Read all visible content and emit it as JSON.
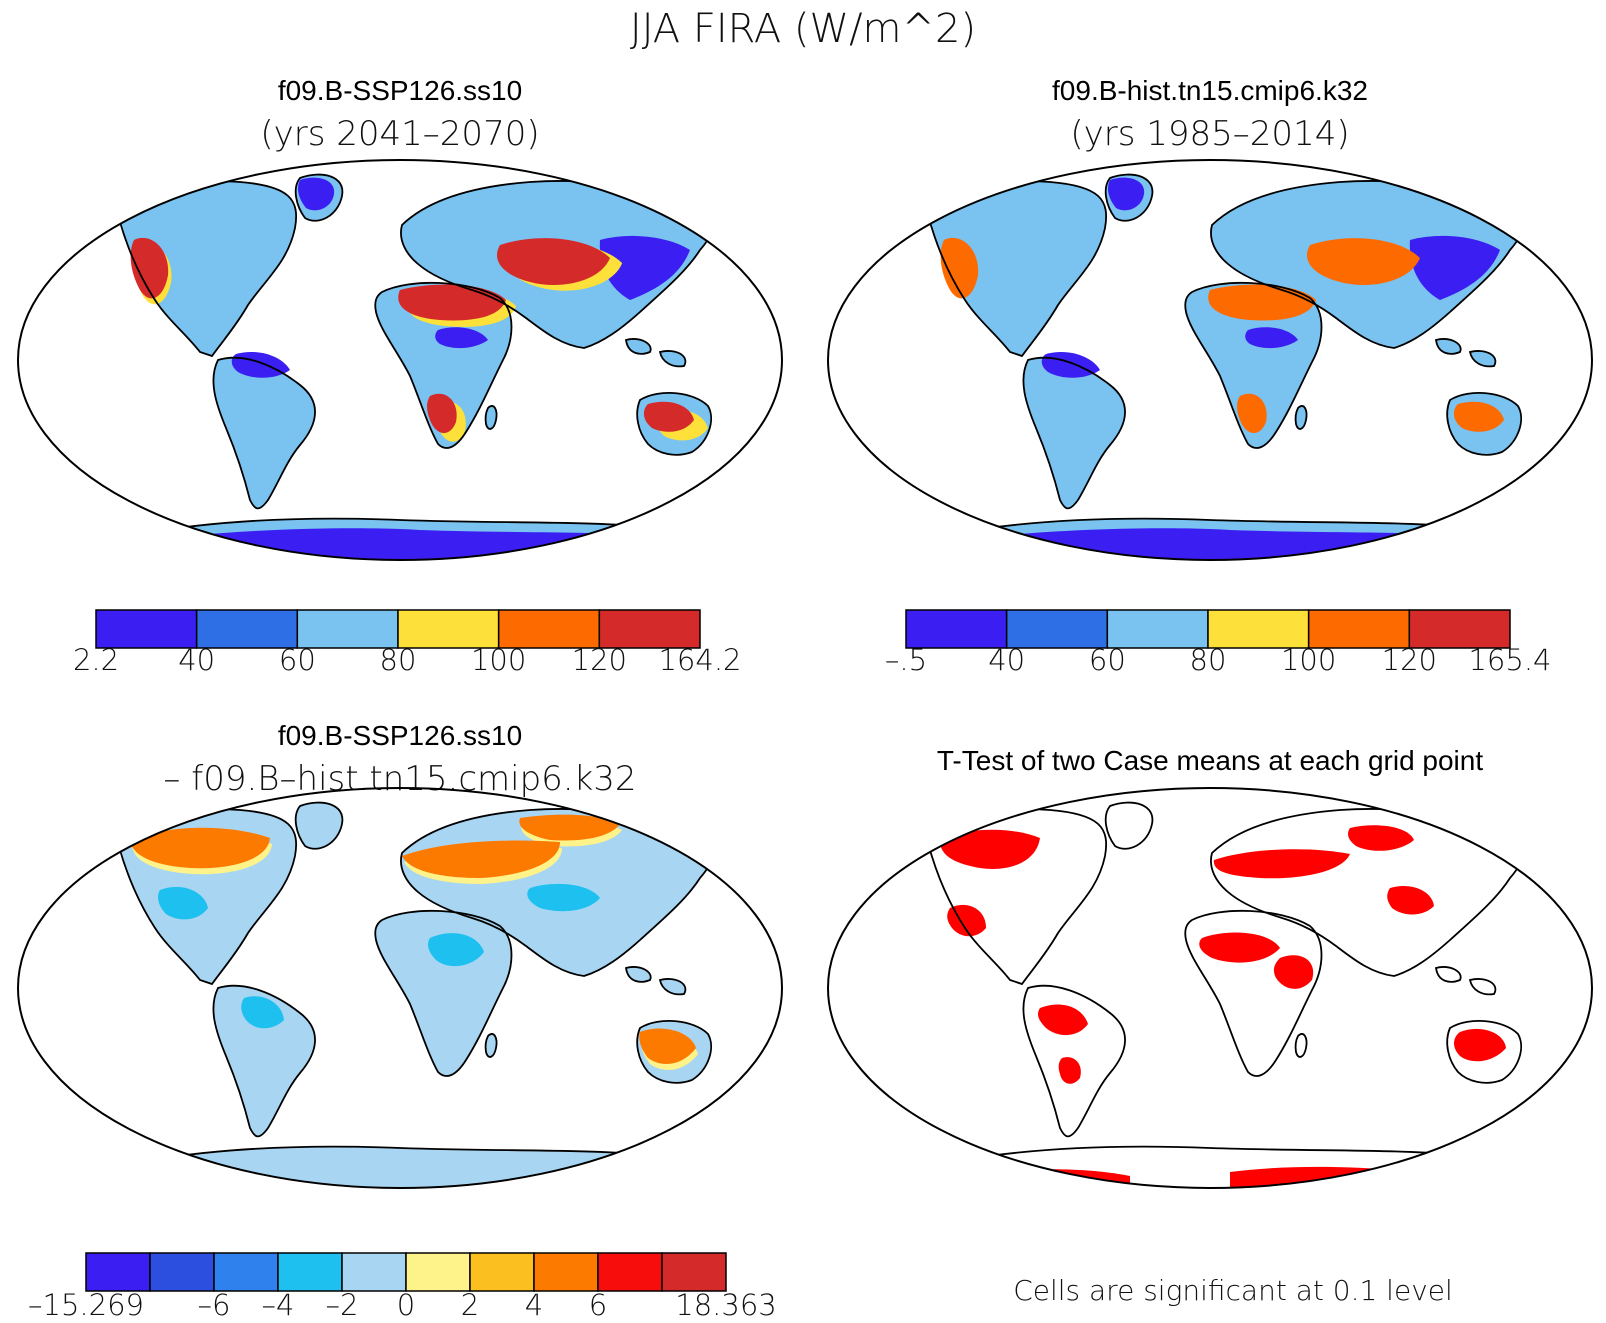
{
  "figure": {
    "title": "JJA FIRA (W/m^2)"
  },
  "panels": [
    {
      "id": "case",
      "title": "f09.B-SSP126.ss10",
      "subtitle": "(yrs 2041–2070)",
      "colorbar": {
        "labels": [
          "2.2",
          "40",
          "60",
          "80",
          "100",
          "120",
          "164.2"
        ],
        "colors": [
          "#3a1ef2",
          "#2f6fe6",
          "#7ac3f0",
          "#fde13a",
          "#fd6a00",
          "#d42a2a"
        ]
      }
    },
    {
      "id": "control",
      "title": "f09.B-hist.tn15.cmip6.k32",
      "subtitle": "(yrs 1985–2014)",
      "colorbar": {
        "labels": [
          "–.5",
          "40",
          "60",
          "80",
          "100",
          "120",
          "165.4"
        ],
        "colors": [
          "#3a1ef2",
          "#2f6fe6",
          "#7ac3f0",
          "#fde13a",
          "#fd6a00",
          "#d42a2a"
        ]
      }
    },
    {
      "id": "difference",
      "title": "f09.B-SSP126.ss10",
      "subtitle": "– f09.B–hist.tn15.cmip6.k32",
      "colorbar": {
        "labels": [
          "–15.269",
          "–6",
          "–4",
          "–2",
          "0",
          "2",
          "4",
          "6",
          "18.363"
        ],
        "label_edge_index": [
          0,
          2,
          3,
          4,
          5,
          6,
          7,
          8,
          10
        ],
        "colors": [
          "#3a1ef2",
          "#2d4fe0",
          "#2f82ee",
          "#1ec0f0",
          "#a8d6f2",
          "#fef28a",
          "#fbbf1f",
          "#fd7a00",
          "#f80d0d",
          "#d42a2a"
        ]
      }
    },
    {
      "id": "ttest",
      "title": "T-Test of two Case means at each grid point",
      "note": "Cells are significant at 0.1 level",
      "significant_color": "#ff0000"
    }
  ]
}
